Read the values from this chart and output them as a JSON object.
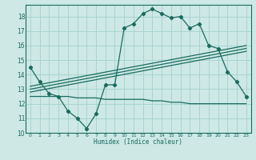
{
  "background_color": "#cde8e5",
  "grid_color": "#a8d5d0",
  "line_color": "#1a6b5e",
  "xlim": [
    -0.5,
    23.5
  ],
  "ylim": [
    10,
    18.8
  ],
  "xticks": [
    0,
    1,
    2,
    3,
    4,
    5,
    6,
    7,
    8,
    9,
    10,
    11,
    12,
    13,
    14,
    15,
    16,
    17,
    18,
    19,
    20,
    21,
    22,
    23
  ],
  "yticks": [
    10,
    11,
    12,
    13,
    14,
    15,
    16,
    17,
    18
  ],
  "xlabel": "Humidex (Indice chaleur)",
  "series1_x": [
    0,
    1,
    2,
    3,
    4,
    5,
    6,
    7,
    8,
    9,
    10,
    11,
    12,
    13,
    14,
    15,
    16,
    17,
    18,
    19,
    20,
    21,
    22,
    23
  ],
  "series1_y": [
    14.5,
    13.5,
    12.7,
    12.5,
    11.5,
    11.0,
    10.3,
    11.3,
    13.3,
    13.3,
    17.2,
    17.5,
    18.2,
    18.5,
    18.2,
    17.9,
    18.0,
    17.2,
    17.5,
    16.0,
    15.8,
    14.2,
    13.5,
    12.5
  ],
  "series2_x": [
    0,
    1,
    2,
    3,
    4,
    5,
    6,
    7,
    8,
    9,
    10,
    11,
    12,
    13,
    14,
    15,
    16,
    17,
    18,
    19,
    20,
    21,
    22,
    23
  ],
  "series2_y": [
    12.5,
    12.5,
    12.5,
    12.5,
    12.5,
    12.4,
    12.4,
    12.4,
    12.3,
    12.3,
    12.3,
    12.3,
    12.3,
    12.2,
    12.2,
    12.1,
    12.1,
    12.0,
    12.0,
    12.0,
    12.0,
    12.0,
    12.0,
    12.0
  ],
  "series3_x": [
    0,
    23
  ],
  "series3_y": [
    12.8,
    15.6
  ],
  "series4_x": [
    0,
    23
  ],
  "series4_y": [
    13.0,
    15.8
  ],
  "series5_x": [
    0,
    23
  ],
  "series5_y": [
    13.2,
    16.0
  ]
}
